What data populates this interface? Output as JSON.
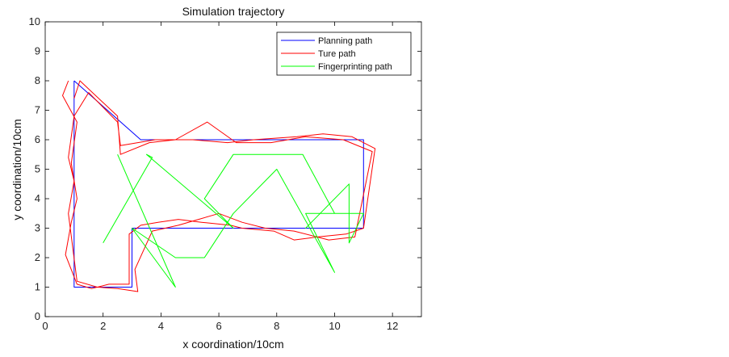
{
  "chart_data": {
    "type": "line",
    "title": "Simulation trajectory",
    "xlabel": "x coordination/10cm",
    "ylabel": "y coordination/10cm",
    "xlim": [
      0,
      13
    ],
    "ylim": [
      0,
      10
    ],
    "xticks": [
      "0",
      "2",
      "4",
      "6",
      "8",
      "10",
      "12"
    ],
    "yticks": [
      "0",
      "1",
      "2",
      "3",
      "4",
      "5",
      "6",
      "7",
      "8",
      "9",
      "10"
    ],
    "grid": false,
    "legend_position": "top-right",
    "series": [
      {
        "name": "Planning path",
        "color": "#0000ff",
        "points": [
          [
            1,
            8
          ],
          [
            1,
            1
          ],
          [
            3,
            1
          ],
          [
            3,
            3
          ],
          [
            11,
            3
          ],
          [
            11,
            6
          ],
          [
            3.3,
            6
          ],
          [
            1,
            8
          ]
        ]
      },
      {
        "name": "Ture path",
        "color": "#ff0000",
        "points": [
          [
            0.8,
            8
          ],
          [
            0.6,
            7.5
          ],
          [
            1.1,
            6.6
          ],
          [
            0.9,
            5.2
          ],
          [
            1.1,
            4
          ],
          [
            0.9,
            3.2
          ],
          [
            0.7,
            2.1
          ],
          [
            1.1,
            1.1
          ],
          [
            1.6,
            0.95
          ],
          [
            2.2,
            1.1
          ],
          [
            2.9,
            1.1
          ],
          [
            2.9,
            2.8
          ],
          [
            3.3,
            3.1
          ],
          [
            3.9,
            3.2
          ],
          [
            4.6,
            3.3
          ],
          [
            5.4,
            3.2
          ],
          [
            6.4,
            3.1
          ],
          [
            6.8,
            3.0
          ],
          [
            7.9,
            2.9
          ],
          [
            8.6,
            2.6
          ],
          [
            9.4,
            2.7
          ],
          [
            10.4,
            2.8
          ],
          [
            11,
            3.0
          ],
          [
            11.4,
            5.7
          ],
          [
            10.6,
            6.1
          ],
          [
            9.6,
            6.2
          ],
          [
            8.7,
            6.1
          ],
          [
            7.2,
            6.0
          ],
          [
            6.3,
            5.9
          ],
          [
            5.1,
            6.0
          ],
          [
            3.8,
            6.0
          ],
          [
            2.6,
            5.8
          ],
          [
            2.5,
            6.6
          ],
          [
            1.5,
            7.6
          ],
          [
            1.0,
            6.8
          ],
          [
            0.8,
            5.4
          ],
          [
            1.0,
            4.6
          ],
          [
            0.8,
            3.5
          ],
          [
            1.1,
            1.2
          ],
          [
            1.8,
            1.0
          ],
          [
            2.5,
            0.95
          ],
          [
            3.2,
            0.85
          ],
          [
            3.1,
            1.6
          ],
          [
            3.7,
            2.9
          ],
          [
            4.6,
            3.1
          ],
          [
            5.3,
            3.3
          ],
          [
            6.0,
            3.5
          ],
          [
            6.8,
            3.2
          ],
          [
            7.6,
            3.0
          ],
          [
            8.6,
            2.9
          ],
          [
            9.8,
            2.6
          ],
          [
            10.7,
            2.7
          ],
          [
            11.3,
            5.6
          ],
          [
            10.3,
            6.0
          ],
          [
            9.0,
            6.1
          ],
          [
            7.8,
            5.9
          ],
          [
            6.6,
            5.9
          ],
          [
            5.6,
            6.6
          ],
          [
            4.5,
            6.0
          ],
          [
            3.6,
            5.9
          ],
          [
            2.6,
            5.5
          ],
          [
            2.5,
            6.8
          ],
          [
            1.2,
            8.0
          ],
          [
            1.0,
            7.4
          ]
        ]
      },
      {
        "name": "Fingerprinting path",
        "color": "#00ff00",
        "points": [
          [
            2.5,
            5.5
          ],
          [
            4.5,
            1
          ],
          [
            3,
            3
          ],
          [
            4.5,
            2
          ],
          [
            5.5,
            2
          ],
          [
            6.5,
            3.5
          ],
          [
            8,
            5
          ],
          [
            10,
            1.5
          ],
          [
            9,
            3.5
          ],
          [
            11,
            3.5
          ],
          [
            10.5,
            2.5
          ],
          [
            10.5,
            4.5
          ],
          [
            9,
            3
          ],
          [
            9.5,
            3.5
          ],
          [
            10,
            3.5
          ],
          [
            8.9,
            5.5
          ],
          [
            6.5,
            5.5
          ],
          [
            5.5,
            4
          ],
          [
            6.5,
            3
          ],
          [
            3.5,
            5.5
          ],
          [
            3.7,
            5.4
          ],
          [
            2,
            2.5
          ]
        ]
      }
    ]
  }
}
